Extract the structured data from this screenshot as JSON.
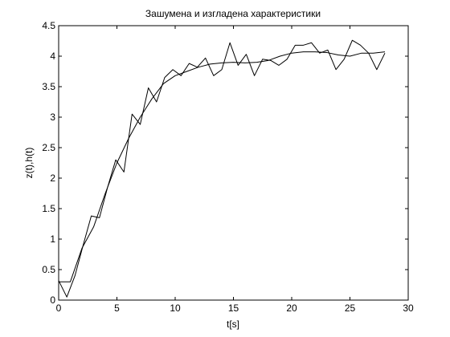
{
  "chart_data": {
    "type": "line",
    "title": "Зашумена и изгладена характеристики",
    "xlabel": "t[s]",
    "ylabel": "z(t),h(t)",
    "xlim": [
      0,
      30
    ],
    "ylim": [
      0,
      4.5
    ],
    "xticks": [
      0,
      5,
      10,
      15,
      20,
      25,
      30
    ],
    "yticks": [
      0,
      0.5,
      1,
      1.5,
      2,
      2.5,
      3,
      3.5,
      4,
      4.5
    ],
    "xtick_labels": [
      "0",
      "5",
      "10",
      "15",
      "20",
      "25",
      "30"
    ],
    "ytick_labels": [
      "0",
      "0.5",
      "1",
      "1.5",
      "2",
      "2.5",
      "3",
      "3.5",
      "4",
      "4.5"
    ],
    "grid": false,
    "line_color": "#000000",
    "series": [
      {
        "x": [
          0,
          0.7,
          1.4,
          2.1,
          2.8,
          3.5,
          4.2,
          4.9,
          5.6,
          6.3,
          7.0,
          7.7,
          8.4,
          9.1,
          9.8,
          10.5,
          11.2,
          11.9,
          12.6,
          13.3,
          14.0,
          14.7,
          15.4,
          16.1,
          16.8,
          17.5,
          18.2,
          18.9,
          19.6,
          20.3,
          21.0,
          21.7,
          22.4,
          23.1,
          23.8,
          24.5,
          25.2,
          25.9,
          26.6,
          27.3,
          28.0
        ],
        "values": [
          0.32,
          0.05,
          0.4,
          0.9,
          1.38,
          1.35,
          1.85,
          2.3,
          2.1,
          3.05,
          2.88,
          3.48,
          3.25,
          3.65,
          3.78,
          3.68,
          3.88,
          3.82,
          3.97,
          3.68,
          3.78,
          4.22,
          3.85,
          4.03,
          3.68,
          3.95,
          3.93,
          3.85,
          3.95,
          4.18,
          4.18,
          4.22,
          4.05,
          4.1,
          3.78,
          3.95,
          4.26,
          4.18,
          4.05,
          3.78,
          4.05
        ]
      },
      {
        "x": [
          0,
          1,
          2,
          3,
          4,
          5,
          6,
          7,
          8,
          9,
          10,
          11,
          12,
          13,
          14,
          15,
          16,
          17,
          18,
          19,
          20,
          21,
          22,
          23,
          24,
          25,
          26,
          27,
          28
        ],
        "values": [
          0.3,
          0.3,
          0.85,
          1.2,
          1.75,
          2.25,
          2.65,
          3.0,
          3.3,
          3.55,
          3.68,
          3.75,
          3.82,
          3.87,
          3.89,
          3.9,
          3.89,
          3.9,
          3.93,
          4.0,
          4.05,
          4.07,
          4.07,
          4.06,
          4.02,
          4.0,
          4.05,
          4.05,
          4.07
        ]
      }
    ]
  }
}
